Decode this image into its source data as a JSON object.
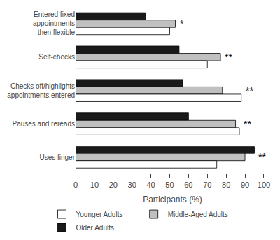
{
  "chart_data": {
    "type": "bar",
    "orientation": "horizontal",
    "categories": [
      "Entered fixed\nappointments\nthen flexible",
      "Self-checks",
      "Checks off/highlights\nappointments entered",
      "Pauses and rereads",
      "Uses finger"
    ],
    "series": [
      {
        "name": "Younger Adults",
        "color": "#ffffff",
        "values": [
          50,
          70,
          88,
          87,
          75
        ]
      },
      {
        "name": "Middle-Aged Adults",
        "color": "#c0c0c0",
        "values": [
          53,
          77,
          78,
          85,
          90
        ]
      },
      {
        "name": "Older Adults",
        "color": "#1a1a1a",
        "values": [
          37,
          55,
          57,
          60,
          95
        ]
      }
    ],
    "xlabel": "Participants (%)",
    "xlim": [
      0,
      103
    ],
    "xticks": [
      0,
      10,
      20,
      30,
      40,
      50,
      60,
      70,
      80,
      90,
      100
    ],
    "grid": false,
    "legend": "bottom",
    "annotations": [
      {
        "category": "Entered fixed\nappointments\nthen flexible",
        "text": "*"
      },
      {
        "category": "Self-checks",
        "text": "**"
      },
      {
        "category": "Checks off/highlights\nappointments entered",
        "text": "**"
      },
      {
        "category": "Pauses and rereads",
        "text": "**"
      },
      {
        "category": "Uses finger",
        "text": "**"
      }
    ]
  }
}
